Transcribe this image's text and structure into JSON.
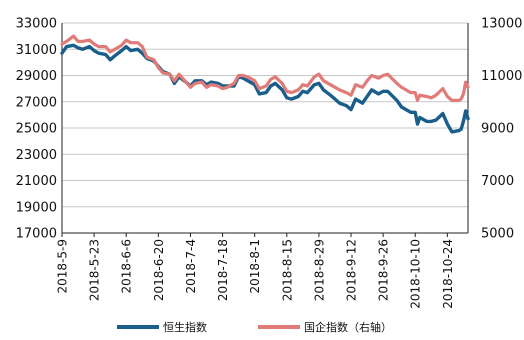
{
  "chart_data": {
    "type": "line",
    "x_ticks": [
      "2018-5-9",
      "2018-5-23",
      "2018-6-6",
      "2018-6-20",
      "2018-7-4",
      "2018-7-18",
      "2018-8-1",
      "2018-8-15",
      "2018-8-29",
      "2018-9-12",
      "2018-9-26",
      "2018-10-10",
      "2018-10-24"
    ],
    "x_range": [
      "2018-5-9",
      "2018-11-02"
    ],
    "y_left": {
      "min": 17000,
      "max": 33000,
      "step": 2000
    },
    "y_right": {
      "min": 5000,
      "max": 13000,
      "step": 2000
    },
    "grid": "horizontal",
    "legend_position": "bottom",
    "series": [
      {
        "name": "恒生指数",
        "axis": "left",
        "color": "#1a5e8c",
        "points": [
          [
            "2018-5-9",
            30700
          ],
          [
            "2018-5-11",
            31200
          ],
          [
            "2018-5-14",
            31300
          ],
          [
            "2018-5-16",
            31100
          ],
          [
            "2018-5-18",
            31000
          ],
          [
            "2018-5-21",
            31200
          ],
          [
            "2018-5-23",
            30900
          ],
          [
            "2018-5-25",
            30700
          ],
          [
            "2018-5-28",
            30600
          ],
          [
            "2018-5-30",
            30200
          ],
          [
            "2018-6-1",
            30500
          ],
          [
            "2018-6-4",
            30900
          ],
          [
            "2018-6-6",
            31200
          ],
          [
            "2018-6-8",
            30900
          ],
          [
            "2018-6-11",
            31000
          ],
          [
            "2018-6-13",
            30700
          ],
          [
            "2018-6-15",
            30300
          ],
          [
            "2018-6-18",
            30100
          ],
          [
            "2018-6-20",
            29700
          ],
          [
            "2018-6-22",
            29300
          ],
          [
            "2018-6-25",
            29100
          ],
          [
            "2018-6-27",
            28400
          ],
          [
            "2018-6-29",
            28900
          ],
          [
            "2018-7-2",
            28500
          ],
          [
            "2018-7-4",
            28200
          ],
          [
            "2018-7-6",
            28600
          ],
          [
            "2018-7-9",
            28600
          ],
          [
            "2018-7-11",
            28300
          ],
          [
            "2018-7-13",
            28500
          ],
          [
            "2018-7-16",
            28400
          ],
          [
            "2018-7-18",
            28200
          ],
          [
            "2018-7-20",
            28200
          ],
          [
            "2018-7-23",
            28200
          ],
          [
            "2018-7-25",
            28900
          ],
          [
            "2018-7-27",
            28800
          ],
          [
            "2018-7-30",
            28500
          ],
          [
            "2018-8-1",
            28300
          ],
          [
            "2018-8-3",
            27600
          ],
          [
            "2018-8-6",
            27700
          ],
          [
            "2018-8-8",
            28200
          ],
          [
            "2018-8-10",
            28400
          ],
          [
            "2018-8-13",
            27900
          ],
          [
            "2018-8-15",
            27300
          ],
          [
            "2018-8-17",
            27200
          ],
          [
            "2018-8-20",
            27400
          ],
          [
            "2018-8-22",
            27800
          ],
          [
            "2018-8-24",
            27700
          ],
          [
            "2018-8-27",
            28300
          ],
          [
            "2018-8-29",
            28400
          ],
          [
            "2018-8-31",
            27900
          ],
          [
            "2018-9-3",
            27500
          ],
          [
            "2018-9-5",
            27200
          ],
          [
            "2018-9-7",
            26900
          ],
          [
            "2018-9-10",
            26700
          ],
          [
            "2018-9-12",
            26400
          ],
          [
            "2018-9-14",
            27200
          ],
          [
            "2018-9-17",
            26900
          ],
          [
            "2018-9-19",
            27400
          ],
          [
            "2018-9-21",
            27900
          ],
          [
            "2018-9-24",
            27600
          ],
          [
            "2018-9-26",
            27800
          ],
          [
            "2018-9-28",
            27800
          ],
          [
            "2018-10-2",
            27100
          ],
          [
            "2018-10-4",
            26600
          ],
          [
            "2018-10-8",
            26200
          ],
          [
            "2018-10-10",
            26200
          ],
          [
            "2018-10-11",
            25300
          ],
          [
            "2018-10-12",
            25800
          ],
          [
            "2018-10-15",
            25500
          ],
          [
            "2018-10-17",
            25500
          ],
          [
            "2018-10-19",
            25600
          ],
          [
            "2018-10-22",
            26100
          ],
          [
            "2018-10-24",
            25300
          ],
          [
            "2018-10-26",
            24700
          ],
          [
            "2018-10-29",
            24800
          ],
          [
            "2018-10-30",
            24900
          ],
          [
            "2018-10-31",
            25500
          ],
          [
            "2018-11-1",
            26300
          ],
          [
            "2018-11-2",
            25700
          ]
        ]
      },
      {
        "name": "国企指数（右轴）",
        "axis": "right",
        "color": "#e07b78",
        "points": [
          [
            "2018-5-9",
            12200
          ],
          [
            "2018-5-11",
            12300
          ],
          [
            "2018-5-14",
            12500
          ],
          [
            "2018-5-16",
            12300
          ],
          [
            "2018-5-18",
            12300
          ],
          [
            "2018-5-21",
            12350
          ],
          [
            "2018-5-23",
            12200
          ],
          [
            "2018-5-25",
            12100
          ],
          [
            "2018-5-28",
            12100
          ],
          [
            "2018-5-30",
            11900
          ],
          [
            "2018-6-1",
            12000
          ],
          [
            "2018-6-4",
            12150
          ],
          [
            "2018-6-6",
            12350
          ],
          [
            "2018-6-8",
            12250
          ],
          [
            "2018-6-11",
            12250
          ],
          [
            "2018-6-13",
            12100
          ],
          [
            "2018-6-15",
            11700
          ],
          [
            "2018-6-18",
            11600
          ],
          [
            "2018-6-20",
            11300
          ],
          [
            "2018-6-22",
            11100
          ],
          [
            "2018-6-25",
            11050
          ],
          [
            "2018-6-27",
            10800
          ],
          [
            "2018-6-29",
            11050
          ],
          [
            "2018-7-2",
            10750
          ],
          [
            "2018-7-4",
            10550
          ],
          [
            "2018-7-6",
            10700
          ],
          [
            "2018-7-9",
            10750
          ],
          [
            "2018-7-11",
            10550
          ],
          [
            "2018-7-13",
            10650
          ],
          [
            "2018-7-16",
            10600
          ],
          [
            "2018-7-18",
            10500
          ],
          [
            "2018-7-20",
            10550
          ],
          [
            "2018-7-23",
            10700
          ],
          [
            "2018-7-25",
            11000
          ],
          [
            "2018-7-27",
            11000
          ],
          [
            "2018-7-30",
            10900
          ],
          [
            "2018-8-1",
            10800
          ],
          [
            "2018-8-3",
            10500
          ],
          [
            "2018-8-6",
            10600
          ],
          [
            "2018-8-8",
            10850
          ],
          [
            "2018-8-10",
            10950
          ],
          [
            "2018-8-13",
            10700
          ],
          [
            "2018-8-15",
            10400
          ],
          [
            "2018-8-17",
            10350
          ],
          [
            "2018-8-20",
            10450
          ],
          [
            "2018-8-22",
            10650
          ],
          [
            "2018-8-24",
            10600
          ],
          [
            "2018-8-27",
            10950
          ],
          [
            "2018-8-29",
            11050
          ],
          [
            "2018-8-31",
            10800
          ],
          [
            "2018-9-3",
            10650
          ],
          [
            "2018-9-5",
            10550
          ],
          [
            "2018-9-7",
            10450
          ],
          [
            "2018-9-10",
            10350
          ],
          [
            "2018-9-12",
            10250
          ],
          [
            "2018-9-14",
            10650
          ],
          [
            "2018-9-17",
            10550
          ],
          [
            "2018-9-19",
            10800
          ],
          [
            "2018-9-21",
            11000
          ],
          [
            "2018-9-24",
            10900
          ],
          [
            "2018-9-26",
            11000
          ],
          [
            "2018-9-28",
            11050
          ],
          [
            "2018-10-2",
            10700
          ],
          [
            "2018-10-4",
            10550
          ],
          [
            "2018-10-8",
            10350
          ],
          [
            "2018-10-10",
            10350
          ],
          [
            "2018-10-11",
            10050
          ],
          [
            "2018-10-12",
            10250
          ],
          [
            "2018-10-15",
            10200
          ],
          [
            "2018-10-17",
            10150
          ],
          [
            "2018-10-19",
            10250
          ],
          [
            "2018-10-22",
            10500
          ],
          [
            "2018-10-24",
            10200
          ],
          [
            "2018-10-26",
            10050
          ],
          [
            "2018-10-29",
            10050
          ],
          [
            "2018-10-30",
            10100
          ],
          [
            "2018-10-31",
            10300
          ],
          [
            "2018-11-1",
            10750
          ],
          [
            "2018-11-2",
            10550
          ]
        ]
      }
    ]
  }
}
